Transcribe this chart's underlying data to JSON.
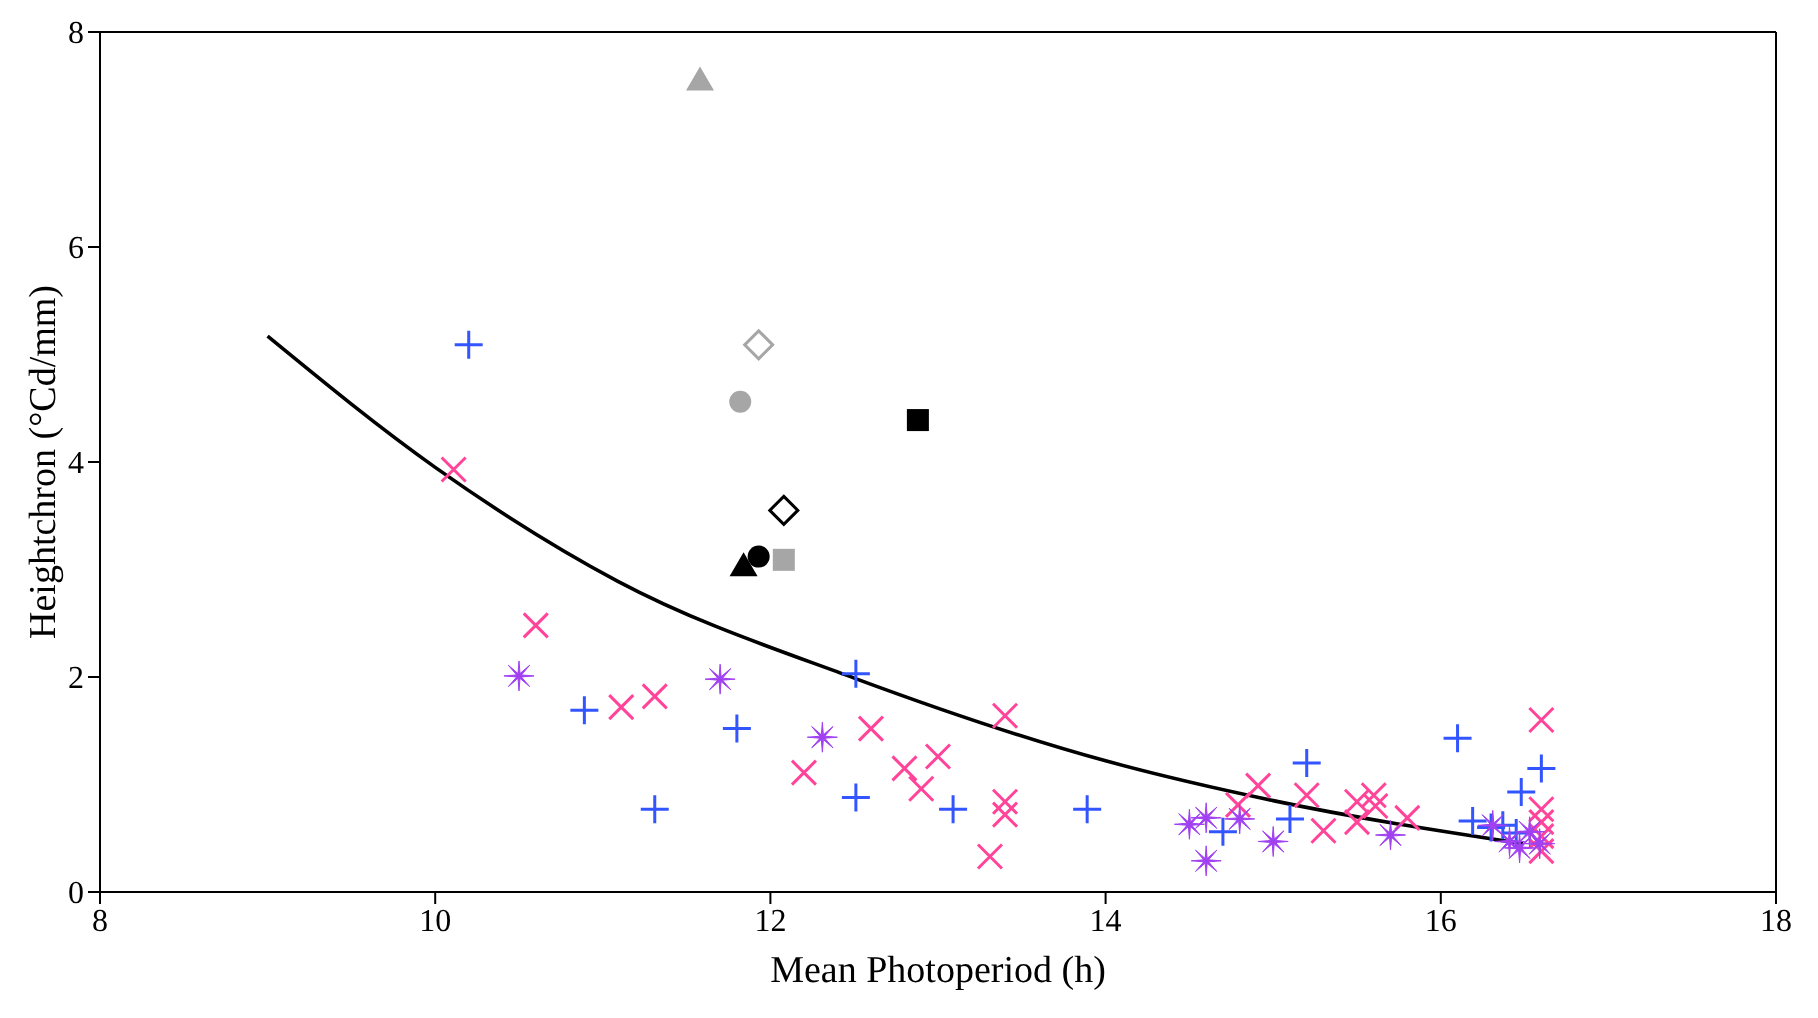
{
  "chart_data": {
    "type": "scatter",
    "xlabel": "Mean Photoperiod (h)",
    "ylabel": "Heightchron (°Cd/mm)",
    "xlim": [
      8,
      18
    ],
    "xticks": [
      8,
      10,
      12,
      14,
      16,
      18
    ],
    "ylim": [
      0,
      8
    ],
    "yticks": [
      0,
      2,
      4,
      6,
      8
    ],
    "series": [
      {
        "marker": "plus",
        "color": "#3355ff",
        "x": [
          10.2,
          10.89,
          11.31,
          11.8,
          12.51,
          12.51,
          13.09,
          13.89,
          14.7,
          15.1,
          15.2,
          16.1,
          16.19,
          16.48,
          16.6,
          16.37,
          16.3,
          16.45
        ],
        "values": [
          5.09,
          1.69,
          0.77,
          1.52,
          2.03,
          0.88,
          0.77,
          0.77,
          0.56,
          0.68,
          1.2,
          1.43,
          0.66,
          0.93,
          1.15,
          0.62,
          0.6,
          0.55
        ]
      },
      {
        "marker": "cross",
        "color": "#ff4499",
        "x": [
          10.11,
          10.6,
          11.11,
          11.31,
          12.2,
          12.6,
          12.8,
          13.0,
          12.9,
          13.4,
          13.4,
          13.4,
          13.31,
          14.79,
          14.91,
          15.2,
          15.3,
          15.5,
          15.6,
          15.61,
          15.5,
          15.8,
          16.6,
          16.6,
          16.6,
          16.6,
          16.6
        ],
        "values": [
          3.93,
          2.48,
          1.72,
          1.82,
          1.11,
          1.52,
          1.15,
          1.26,
          0.96,
          1.64,
          0.84,
          0.72,
          0.33,
          0.81,
          0.99,
          0.9,
          0.57,
          0.84,
          0.9,
          0.8,
          0.65,
          0.69,
          1.6,
          0.77,
          0.65,
          0.38,
          0.52
        ]
      },
      {
        "marker": "star",
        "color": "#a040f0",
        "x": [
          10.5,
          11.7,
          12.31,
          14.5,
          14.6,
          14.6,
          14.8,
          15.0,
          15.7,
          16.31,
          16.41,
          16.53,
          16.59,
          16.47
        ],
        "values": [
          2.01,
          1.98,
          1.44,
          0.63,
          0.69,
          0.29,
          0.68,
          0.47,
          0.53,
          0.62,
          0.47,
          0.56,
          0.45,
          0.41
        ]
      },
      {
        "type": "scatter",
        "marker": "triangle",
        "color": "#000000",
        "x": [
          11.84
        ],
        "values": [
          3.03
        ]
      },
      {
        "type": "scatter",
        "marker": "circle",
        "color": "#000000",
        "x": [
          11.93
        ],
        "values": [
          3.12
        ]
      },
      {
        "type": "scatter",
        "marker": "square",
        "color": "#000000",
        "x": [
          12.88
        ],
        "values": [
          4.39
        ]
      },
      {
        "type": "scatter",
        "marker": "diamond",
        "color": "#000000",
        "x": [
          12.08
        ],
        "values": [
          3.55
        ]
      },
      {
        "type": "scatter",
        "marker": "triangle",
        "color": "#a6a6a6",
        "x": [
          11.58
        ],
        "values": [
          7.55
        ]
      },
      {
        "type": "scatter",
        "marker": "diamond",
        "color": "#a6a6a6",
        "x": [
          11.93
        ],
        "values": [
          5.09
        ]
      },
      {
        "type": "scatter",
        "marker": "circle",
        "color": "#a6a6a6",
        "x": [
          11.82
        ],
        "values": [
          4.56
        ]
      },
      {
        "type": "scatter",
        "marker": "square",
        "color": "#a6a6a6",
        "x": [
          12.08
        ],
        "values": [
          3.09
        ]
      },
      {
        "type": "line",
        "marker": "none",
        "line_style": "solid",
        "color": "#000000",
        "x": [
          9,
          10,
          11.09,
          12.5,
          14,
          15,
          16.49
        ],
        "values": [
          5.17,
          3.95,
          2.89,
          1.99,
          1.22,
          0.85,
          0.45
        ]
      }
    ]
  }
}
